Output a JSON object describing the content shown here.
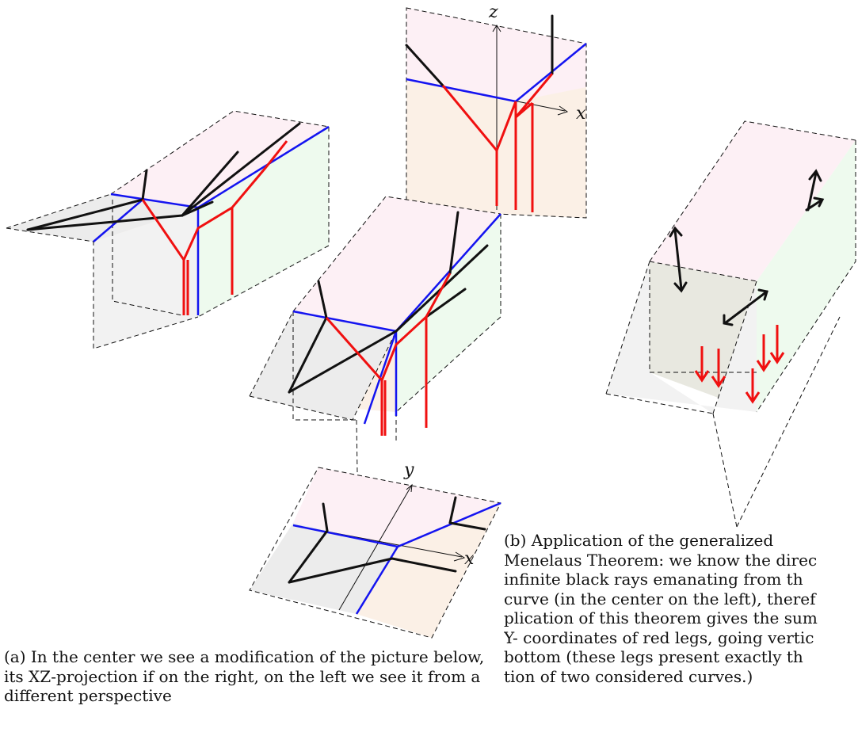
{
  "axes": {
    "top_z": "z",
    "top_x": "x",
    "bottom_y": "y",
    "bottom_x": "x"
  },
  "captions": {
    "a": "(a) In the center we see a modification of the picture below, its XZ-projection if on the right, on the left we see it from a different perspective",
    "b_lines": [
      "(b)  Application  of  the  generalized",
      "Menelaus Theorem: we know the direc",
      "infinite black rays emanating from th",
      "curve (in the center on the left), theref",
      "plication of this theorem gives the sum",
      "Y- coordinates of red legs, going vertic",
      "bottom (these legs present exactly th",
      "tion of two considered curves.)"
    ]
  },
  "colors": {
    "curve_black": "#111111",
    "blue_edge": "#1414f0",
    "red_legs": "#f01010",
    "face_pink": "#fdf0f5",
    "face_peach": "#fbf0e6",
    "face_green": "#eefaee",
    "face_gray": "#ececec"
  }
}
